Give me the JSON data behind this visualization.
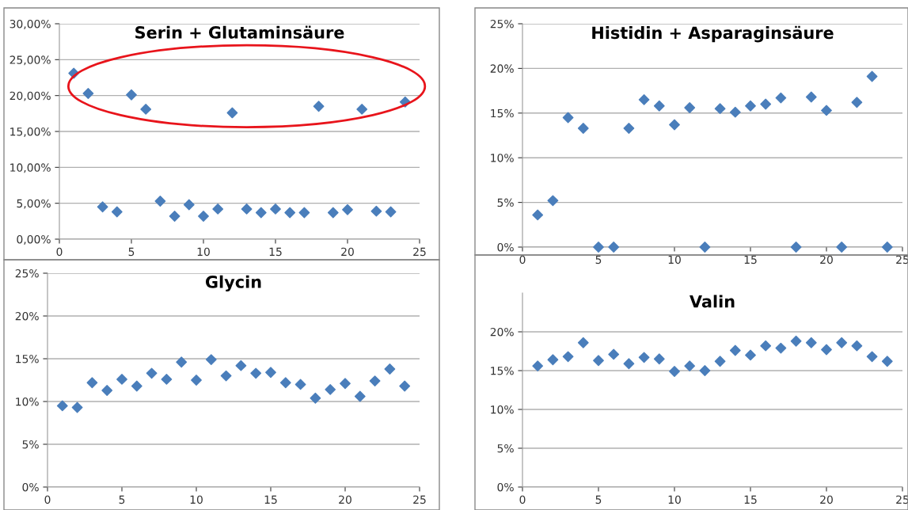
{
  "chart_data": [
    {
      "type": "scatter",
      "title": "Serin + Glutaminsäure",
      "x": [
        1,
        2,
        3,
        4,
        5,
        6,
        7,
        8,
        9,
        10,
        11,
        12,
        13,
        14,
        15,
        16,
        17,
        18,
        19,
        20,
        21,
        22,
        23,
        24
      ],
      "series": [
        {
          "color": "#4a7ebb",
          "values": [
            23.1,
            20.3,
            4.5,
            3.8,
            20.1,
            18.1,
            5.3,
            3.2,
            4.8,
            3.2,
            4.2,
            17.6,
            4.2,
            3.7,
            4.2,
            3.7,
            3.7,
            18.5,
            3.7,
            4.1,
            18.1,
            3.9,
            3.8,
            19.1
          ]
        }
      ],
      "xlim": [
        0,
        25
      ],
      "xticks": [
        0,
        5,
        10,
        15,
        20,
        25
      ],
      "ylim": [
        0,
        30
      ],
      "yticks": [
        {
          "value": 0,
          "label": "0,00%"
        },
        {
          "value": 5,
          "label": "5,00%"
        },
        {
          "value": 10,
          "label": "10,00%"
        },
        {
          "value": 15,
          "label": "15,00%"
        },
        {
          "value": 20,
          "label": "20,00%"
        },
        {
          "value": 25,
          "label": "25,00%"
        },
        {
          "value": 30,
          "label": "30,00%"
        }
      ],
      "grid": "y",
      "marker": "diamond",
      "legend": false
    },
    {
      "type": "scatter",
      "title": "Histidin + Asparaginsäure",
      "x": [
        1,
        2,
        3,
        4,
        5,
        6,
        7,
        8,
        9,
        10,
        11,
        12,
        13,
        14,
        15,
        16,
        17,
        18,
        19,
        20,
        21,
        22,
        23,
        24
      ],
      "series": [
        {
          "color": "#4a7ebb",
          "values": [
            3.6,
            5.2,
            14.5,
            13.3,
            0,
            0,
            13.3,
            16.5,
            15.8,
            13.7,
            15.6,
            0,
            15.5,
            15.1,
            15.8,
            16.0,
            16.7,
            0,
            16.8,
            15.3,
            0,
            16.2,
            19.1,
            0
          ]
        }
      ],
      "xlim": [
        0,
        25
      ],
      "xticks": [
        0,
        5,
        10,
        15,
        20,
        25
      ],
      "ylim": [
        0,
        25
      ],
      "yticks": [
        {
          "value": 0,
          "label": "0%"
        },
        {
          "value": 5,
          "label": "5%"
        },
        {
          "value": 10,
          "label": "10%"
        },
        {
          "value": 15,
          "label": "15%"
        },
        {
          "value": 20,
          "label": "20%"
        },
        {
          "value": 25,
          "label": "25%"
        }
      ],
      "grid": "y",
      "marker": "diamond",
      "legend": false
    },
    {
      "type": "scatter",
      "title": "Glycin",
      "x": [
        1,
        2,
        3,
        4,
        5,
        6,
        7,
        8,
        9,
        10,
        11,
        12,
        13,
        14,
        15,
        16,
        17,
        18,
        19,
        20,
        21,
        22,
        23,
        24
      ],
      "series": [
        {
          "color": "#4a7ebb",
          "values": [
            9.5,
            9.3,
            12.2,
            11.3,
            12.6,
            11.8,
            13.3,
            12.6,
            14.6,
            12.5,
            14.9,
            13.0,
            14.2,
            13.3,
            13.4,
            12.2,
            12.0,
            10.4,
            11.4,
            12.1,
            10.6,
            12.4,
            13.8,
            11.8
          ]
        }
      ],
      "xlim": [
        0,
        25
      ],
      "xticks": [
        0,
        5,
        10,
        15,
        20,
        25
      ],
      "ylim": [
        0,
        25
      ],
      "yticks": [
        {
          "value": 0,
          "label": "0%"
        },
        {
          "value": 5,
          "label": "5%"
        },
        {
          "value": 10,
          "label": "10%"
        },
        {
          "value": 15,
          "label": "15%"
        },
        {
          "value": 20,
          "label": "20%"
        },
        {
          "value": 25,
          "label": "25%"
        }
      ],
      "grid": "y",
      "marker": "diamond",
      "legend": false
    },
    {
      "type": "scatter",
      "title": "Valin",
      "x": [
        1,
        2,
        3,
        4,
        5,
        6,
        7,
        8,
        9,
        10,
        11,
        12,
        13,
        14,
        15,
        16,
        17,
        18,
        19,
        20,
        21,
        22,
        23,
        24
      ],
      "series": [
        {
          "color": "#4a7ebb",
          "values": [
            15.6,
            16.4,
            16.8,
            18.6,
            16.3,
            17.1,
            15.9,
            16.7,
            16.5,
            14.9,
            15.6,
            15.0,
            16.2,
            17.6,
            17.0,
            18.2,
            17.9,
            18.8,
            18.6,
            17.7,
            18.6,
            18.2,
            16.8,
            16.2
          ]
        }
      ],
      "xlim": [
        0,
        25
      ],
      "xticks": [
        0,
        5,
        10,
        15,
        20,
        25
      ],
      "ylim": [
        0,
        25
      ],
      "yticks": [
        {
          "value": 0,
          "label": "0%"
        },
        {
          "value": 5,
          "label": "5%"
        },
        {
          "value": 10,
          "label": "10%"
        },
        {
          "value": 15,
          "label": "15%"
        },
        {
          "value": 20,
          "label": "20%"
        }
      ],
      "grid": "y",
      "marker": "diamond",
      "legend": false
    }
  ]
}
